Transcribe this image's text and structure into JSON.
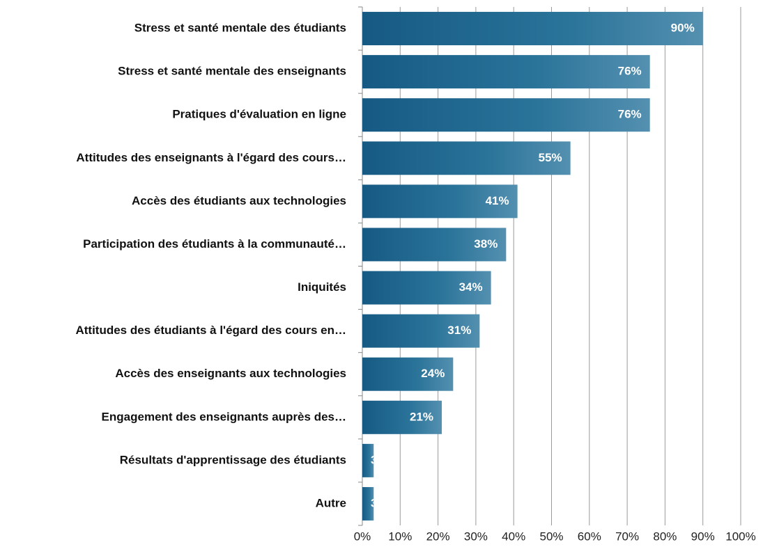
{
  "chart_data": {
    "type": "barh",
    "categories": [
      "Stress et santé mentale des étudiants",
      "Stress et santé mentale des enseignants",
      "Pratiques d'évaluation en ligne",
      "Attitudes des enseignants à l'égard des cours…",
      "Accès des étudiants aux technologies",
      "Participation des étudiants à la communauté…",
      "Iniquités",
      "Attitudes des étudiants à l'égard des cours en…",
      "Accès des enseignants aux technologies",
      "Engagement des enseignants auprès des…",
      "Résultats d'apprentissage des étudiants",
      "Autre"
    ],
    "values": [
      90,
      76,
      76,
      55,
      41,
      38,
      34,
      31,
      24,
      21,
      3,
      3
    ],
    "value_labels": [
      "90%",
      "76%",
      "76%",
      "55%",
      "41%",
      "38%",
      "34%",
      "31%",
      "24%",
      "21%",
      "3%",
      "3%"
    ],
    "color": "#1f6a94",
    "xlim": [
      0,
      100
    ],
    "xticks": [
      {
        "value": 0,
        "label": "0%"
      },
      {
        "value": 10,
        "label": "10%"
      },
      {
        "value": 20,
        "label": "20%"
      },
      {
        "value": 30,
        "label": "30%"
      },
      {
        "value": 40,
        "label": "40%"
      },
      {
        "value": 50,
        "label": "50%"
      },
      {
        "value": 60,
        "label": "60%"
      },
      {
        "value": 70,
        "label": "70%"
      },
      {
        "value": 80,
        "label": "80%"
      },
      {
        "value": 90,
        "label": "90%"
      },
      {
        "value": 100,
        "label": "100%"
      }
    ],
    "grid": true
  }
}
